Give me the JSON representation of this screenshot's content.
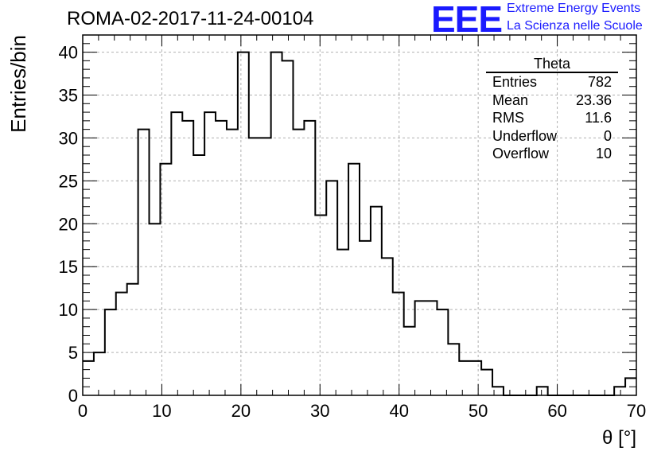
{
  "chart_data": {
    "type": "bar",
    "title": "ROMA-02-2017-11-24-00104",
    "xlabel": "θ [°]",
    "ylabel": "Entries/bin",
    "xlim": [
      0,
      70
    ],
    "ylim": [
      0,
      42
    ],
    "bin_width": 1.4,
    "x_ticks": [
      0,
      10,
      20,
      30,
      40,
      50,
      60,
      70
    ],
    "y_ticks": [
      0,
      5,
      10,
      15,
      20,
      25,
      30,
      35,
      40
    ],
    "grid": true,
    "values": [
      4,
      5,
      10,
      12,
      13,
      31,
      20,
      27,
      33,
      32,
      28,
      33,
      32,
      31,
      40,
      30,
      30,
      40,
      39,
      31,
      32,
      21,
      25,
      17,
      27,
      18,
      22,
      16,
      12,
      8,
      11,
      11,
      10,
      6,
      4,
      4,
      3,
      1,
      0,
      0,
      0,
      1,
      0,
      0,
      0,
      0,
      0,
      0,
      1,
      2
    ]
  },
  "stats_box": {
    "title": "Theta",
    "rows": [
      {
        "label": "Entries",
        "value": "782"
      },
      {
        "label": "Mean",
        "value": "23.36"
      },
      {
        "label": "RMS",
        "value": "11.6"
      },
      {
        "label": "Underflow",
        "value": "0"
      },
      {
        "label": "Overflow",
        "value": "10"
      }
    ]
  },
  "logo": {
    "mark": "EEE",
    "line1": "Extreme Energy Events",
    "line2": "La Scienza nelle Scuole",
    "color": "#1a1aff"
  }
}
